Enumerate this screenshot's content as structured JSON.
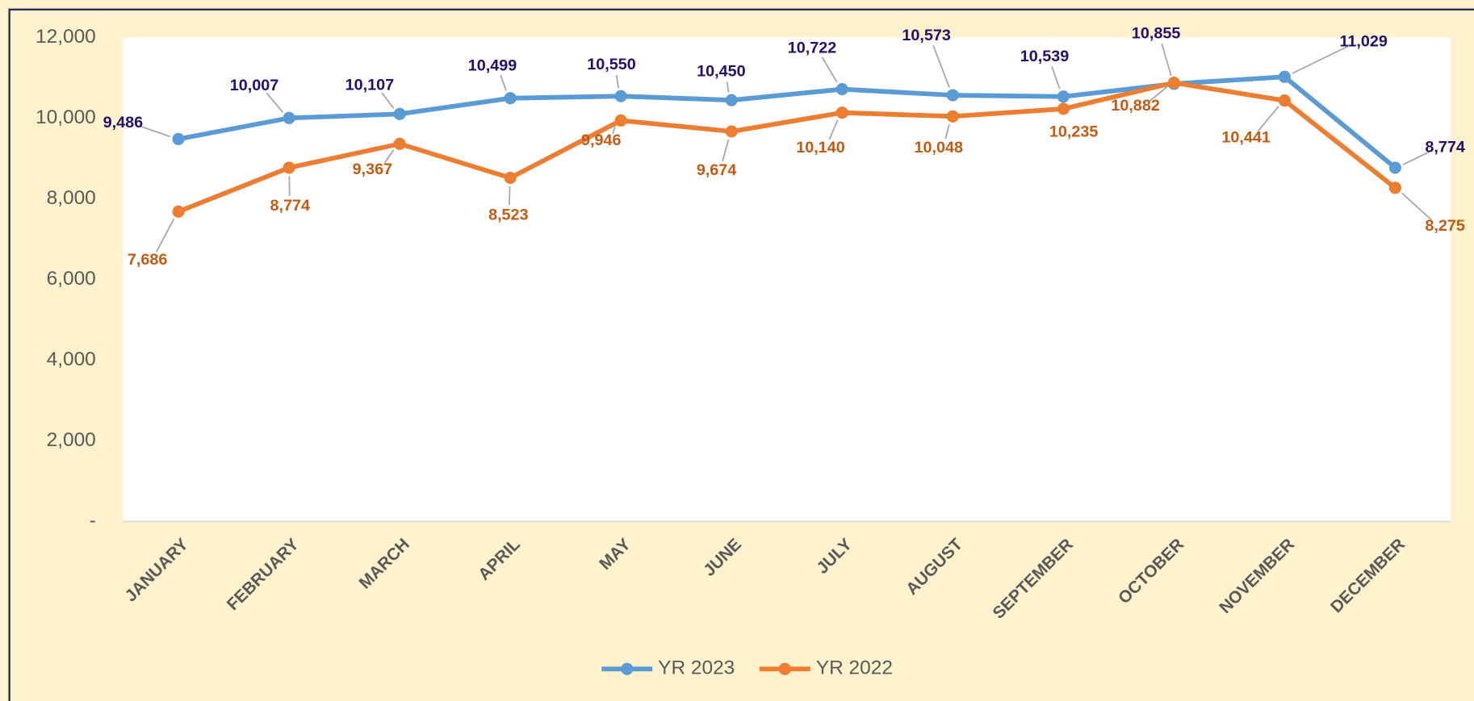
{
  "chart_data": {
    "type": "line",
    "categories": [
      "JANUARY",
      "FEBRUARY",
      "MARCH",
      "APRIL",
      "MAY",
      "JUNE",
      "JULY",
      "AUGUST",
      "SEPTEMBER",
      "OCTOBER",
      "NOVEMBER",
      "DECEMBER"
    ],
    "series": [
      {
        "name": "YR 2023",
        "color": "#5b9bd5",
        "label_color": "#22106e",
        "values": [
          9486,
          10007,
          10107,
          10499,
          10550,
          10450,
          10722,
          10573,
          10539,
          10855,
          11029,
          8774
        ],
        "value_labels": [
          "9,486",
          "10,007",
          "10,107",
          "10,499",
          "10,550",
          "10,450",
          "10,722",
          "10,573",
          "10,539",
          "10,855",
          "11,029",
          "8,774"
        ]
      },
      {
        "name": "YR 2022",
        "color": "#ed7d31",
        "label_color": "#c55a11",
        "values": [
          7686,
          8774,
          9367,
          8523,
          9946,
          9674,
          10140,
          10048,
          10235,
          10882,
          10441,
          8275
        ],
        "value_labels": [
          "7,686",
          "8,774",
          "9,367",
          "8,523",
          "9,946",
          "9,674",
          "10,140",
          "10,048",
          "10,235",
          "10,882",
          "10,441",
          "8,275"
        ]
      }
    ],
    "ylim": [
      0,
      12000
    ],
    "yticks": [
      {
        "value": 0,
        "label": "-"
      },
      {
        "value": 2000,
        "label": "2,000"
      },
      {
        "value": 4000,
        "label": "4,000"
      },
      {
        "value": 6000,
        "label": "6,000"
      },
      {
        "value": 8000,
        "label": "8,000"
      },
      {
        "value": 10000,
        "label": "10,000"
      },
      {
        "value": 12000,
        "label": "12,000"
      }
    ],
    "legend": "bottom"
  }
}
